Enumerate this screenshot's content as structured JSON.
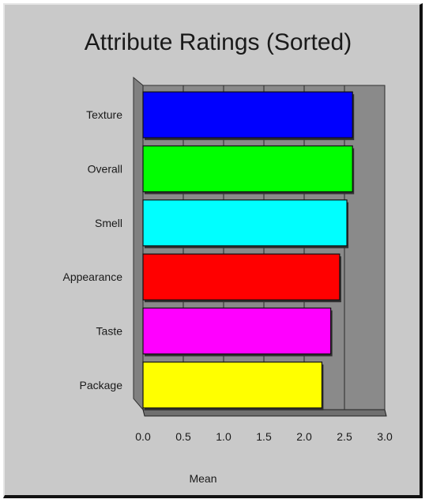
{
  "chart_data": {
    "type": "bar",
    "orientation": "horizontal",
    "title": "Attribute Ratings (Sorted)",
    "xlabel": "Mean",
    "ylabel": "",
    "categories": [
      "Texture",
      "Overall",
      "Smell",
      "Appearance",
      "Taste",
      "Package"
    ],
    "values": [
      2.6,
      2.6,
      2.53,
      2.44,
      2.33,
      2.22
    ],
    "colors": [
      "#0000ff",
      "#00ff00",
      "#00ffff",
      "#ff0000",
      "#ff00ff",
      "#ffff00"
    ],
    "xlim": [
      0,
      3.0
    ],
    "x_ticks": [
      "0.0",
      "0.5",
      "1.0",
      "1.5",
      "2.0",
      "2.5",
      "3.0"
    ],
    "grid": true,
    "legend": false,
    "style": "3d"
  }
}
